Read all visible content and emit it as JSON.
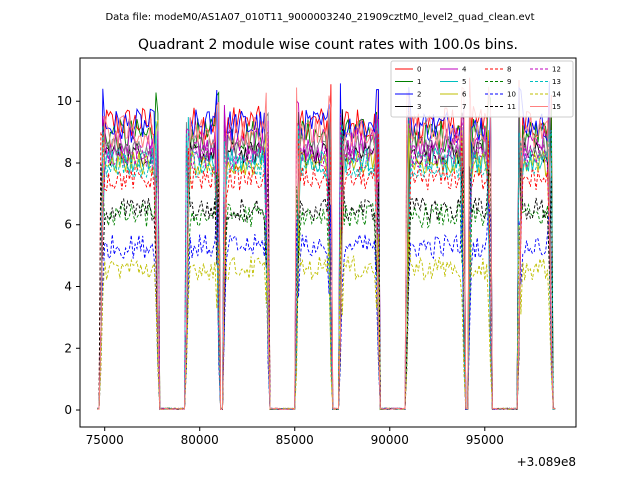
{
  "chart_data": {
    "type": "line",
    "suptitle": "Data file: modeM0/AS1A07_010T11_9000003240_21909cztM0_level2_quad_clean.evt",
    "title": "Quadrant 2 module wise count rates with 100.0s bins.",
    "xlabel": "",
    "ylabel": "",
    "x_offset_label": "+3.089e8",
    "xlim": [
      73700,
      99800
    ],
    "ylim": [
      -0.55,
      11.4
    ],
    "xticks": [
      75000,
      80000,
      85000,
      90000,
      95000
    ],
    "yticks": [
      0,
      2,
      4,
      6,
      8,
      10
    ],
    "legend_position": "top-right",
    "on_intervals": [
      [
        74800,
        77800
      ],
      [
        79300,
        81000
      ],
      [
        81250,
        83600
      ],
      [
        85100,
        86900
      ],
      [
        87400,
        89400
      ],
      [
        90900,
        93900
      ],
      [
        94150,
        95300
      ],
      [
        96800,
        98500
      ]
    ],
    "series": [
      {
        "name": "0",
        "color": "#ff0000",
        "style": "solid",
        "level": 9.3
      },
      {
        "name": "1",
        "color": "#008000",
        "style": "solid",
        "level": 8.9
      },
      {
        "name": "2",
        "color": "#0000ff",
        "style": "solid",
        "level": 9.2
      },
      {
        "name": "3",
        "color": "#000000",
        "style": "solid",
        "level": 8.3
      },
      {
        "name": "4",
        "color": "#bf00bf",
        "style": "solid",
        "level": 8.6
      },
      {
        "name": "5",
        "color": "#00bfbf",
        "style": "solid",
        "level": 8.1
      },
      {
        "name": "6",
        "color": "#bfbf00",
        "style": "solid",
        "level": 8.0
      },
      {
        "name": "7",
        "color": "#808080",
        "style": "solid",
        "level": 8.5
      },
      {
        "name": "8",
        "color": "#ff0000",
        "style": "dashed",
        "level": 7.5
      },
      {
        "name": "9",
        "color": "#008000",
        "style": "dashed",
        "level": 6.3
      },
      {
        "name": "10",
        "color": "#0000ff",
        "style": "dashed",
        "level": 5.3
      },
      {
        "name": "11",
        "color": "#000000",
        "style": "dashed",
        "level": 6.5
      },
      {
        "name": "12",
        "color": "#bf00bf",
        "style": "dashed",
        "level": 8.2
      },
      {
        "name": "13",
        "color": "#00bfbf",
        "style": "dashed",
        "level": 7.9
      },
      {
        "name": "14",
        "color": "#bfbf00",
        "style": "dashed",
        "level": 4.6
      },
      {
        "name": "15",
        "color": "#ff8080",
        "style": "solid",
        "level": 9.0
      }
    ]
  }
}
